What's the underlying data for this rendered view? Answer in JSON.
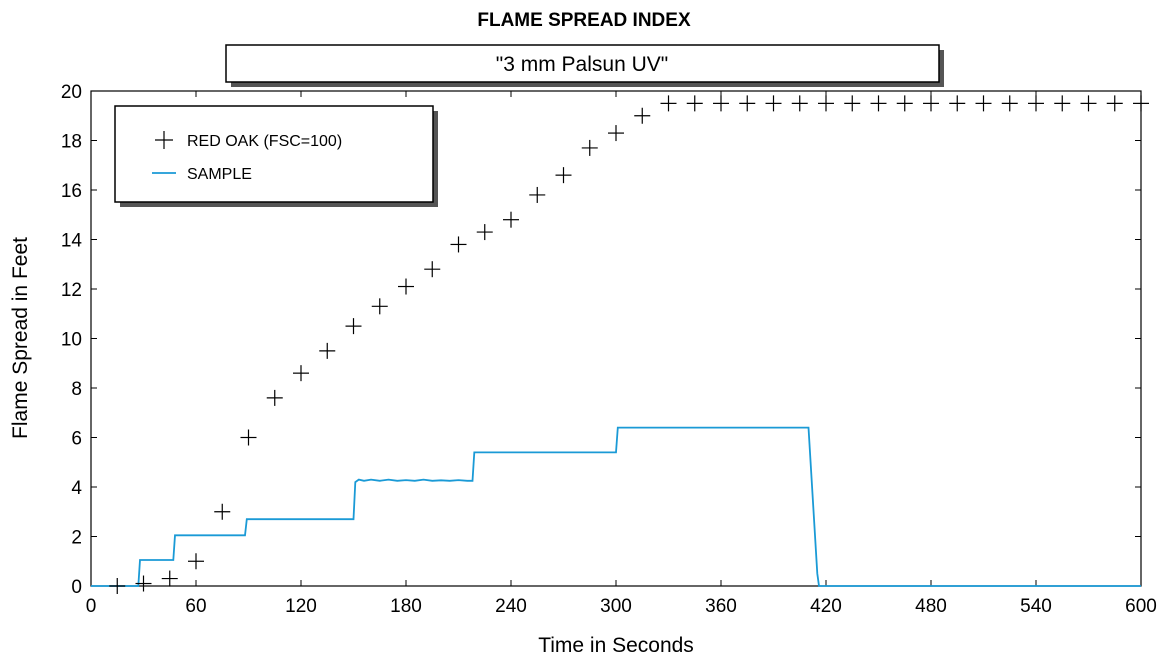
{
  "chart_data": {
    "type": "scatter",
    "title": "FLAME SPREAD INDEX",
    "subtitle": "\"3 mm Palsun UV\"",
    "xlabel": "Time in Seconds",
    "ylabel": "Flame Spread in Feet",
    "xlim": [
      0,
      600
    ],
    "ylim": [
      0,
      20
    ],
    "xticks": [
      0,
      60,
      120,
      180,
      240,
      300,
      360,
      420,
      480,
      540,
      600
    ],
    "yticks": [
      0,
      2,
      4,
      6,
      8,
      10,
      12,
      14,
      16,
      18,
      20
    ],
    "grid": false,
    "legend_position": "top-left",
    "series": [
      {
        "name": "RED OAK (FSC=100)",
        "marker": "plus",
        "color": "#000000",
        "x": [
          15,
          30,
          45,
          60,
          75,
          90,
          105,
          120,
          135,
          150,
          165,
          180,
          195,
          210,
          225,
          240,
          255,
          270,
          285,
          300,
          315,
          330,
          345,
          360,
          375,
          390,
          405,
          420,
          435,
          450,
          465,
          480,
          495,
          510,
          525,
          540,
          555,
          570,
          585,
          600
        ],
        "y": [
          0,
          0.1,
          0.3,
          1.0,
          3.0,
          6.0,
          7.6,
          8.6,
          9.5,
          10.5,
          11.3,
          12.1,
          12.8,
          13.8,
          14.3,
          14.8,
          15.8,
          16.6,
          17.7,
          18.3,
          19.0,
          19.5,
          19.5,
          19.5,
          19.5,
          19.5,
          19.5,
          19.5,
          19.5,
          19.5,
          19.5,
          19.5,
          19.5,
          19.5,
          19.5,
          19.5,
          19.5,
          19.5,
          19.5,
          19.5
        ]
      },
      {
        "name": "SAMPLE",
        "style": "line",
        "color": "#1a9ad6",
        "x": [
          0,
          27,
          28,
          47,
          48,
          88,
          89,
          150,
          151,
          153,
          156,
          160,
          165,
          170,
          175,
          180,
          185,
          190,
          195,
          200,
          205,
          210,
          215,
          218,
          219,
          300,
          301,
          302,
          410,
          415,
          416,
          600
        ],
        "y": [
          0,
          0,
          1.05,
          1.05,
          2.05,
          2.05,
          2.7,
          2.7,
          4.2,
          4.3,
          4.25,
          4.3,
          4.25,
          4.3,
          4.25,
          4.28,
          4.25,
          4.3,
          4.25,
          4.27,
          4.25,
          4.28,
          4.25,
          4.25,
          5.4,
          5.4,
          6.4,
          6.4,
          6.4,
          0.5,
          0,
          0
        ]
      }
    ]
  }
}
